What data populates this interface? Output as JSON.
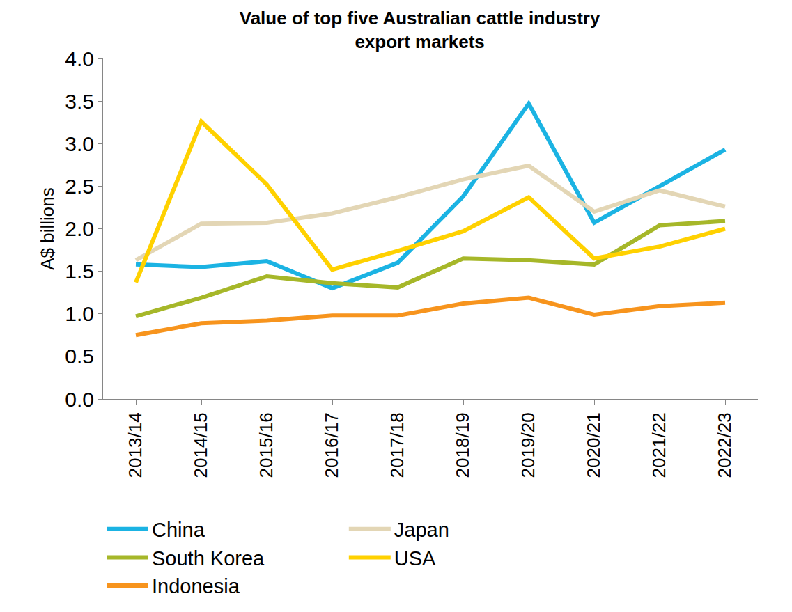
{
  "chart_data": {
    "type": "line",
    "title": "Value of top five Australian cattle industry\nexport markets",
    "y_label": "A$ billions",
    "categories": [
      "2013/14",
      "2014/15",
      "2015/16",
      "2016/17",
      "2017/18",
      "2018/19",
      "2019/20",
      "2020/21",
      "2021/22",
      "2022/23"
    ],
    "series": [
      {
        "name": "China",
        "color": "#1BB3E3",
        "values": [
          1.58,
          1.55,
          1.62,
          1.3,
          1.6,
          2.38,
          3.47,
          2.07,
          2.5,
          2.93
        ]
      },
      {
        "name": "Japan",
        "color": "#E3D6B5",
        "values": [
          1.63,
          2.06,
          2.07,
          2.18,
          2.37,
          2.58,
          2.74,
          2.2,
          2.45,
          2.26
        ]
      },
      {
        "name": "South Korea",
        "color": "#A6B729",
        "values": [
          0.97,
          1.19,
          1.44,
          1.36,
          1.31,
          1.65,
          1.63,
          1.58,
          2.04,
          2.09
        ]
      },
      {
        "name": "USA",
        "color": "#FFD100",
        "values": [
          1.37,
          3.26,
          2.52,
          1.52,
          1.74,
          1.97,
          2.37,
          1.65,
          1.79,
          2.0
        ]
      },
      {
        "name": "Indonesia",
        "color": "#F7941D",
        "values": [
          0.75,
          0.89,
          0.92,
          0.98,
          0.98,
          1.12,
          1.19,
          0.99,
          1.09,
          1.13
        ]
      }
    ],
    "ylim": [
      0,
      4
    ],
    "yticks": [
      {
        "value": 0,
        "label": "0.0"
      },
      0.5,
      {
        "value": 1,
        "label": "1.0"
      },
      1.5,
      {
        "value": 2,
        "label": "2.0"
      },
      2.5,
      {
        "value": 3,
        "label": "3.0"
      },
      3.5,
      {
        "value": 4,
        "label": "4.0"
      }
    ],
    "grid": false,
    "legend": "bottom"
  }
}
